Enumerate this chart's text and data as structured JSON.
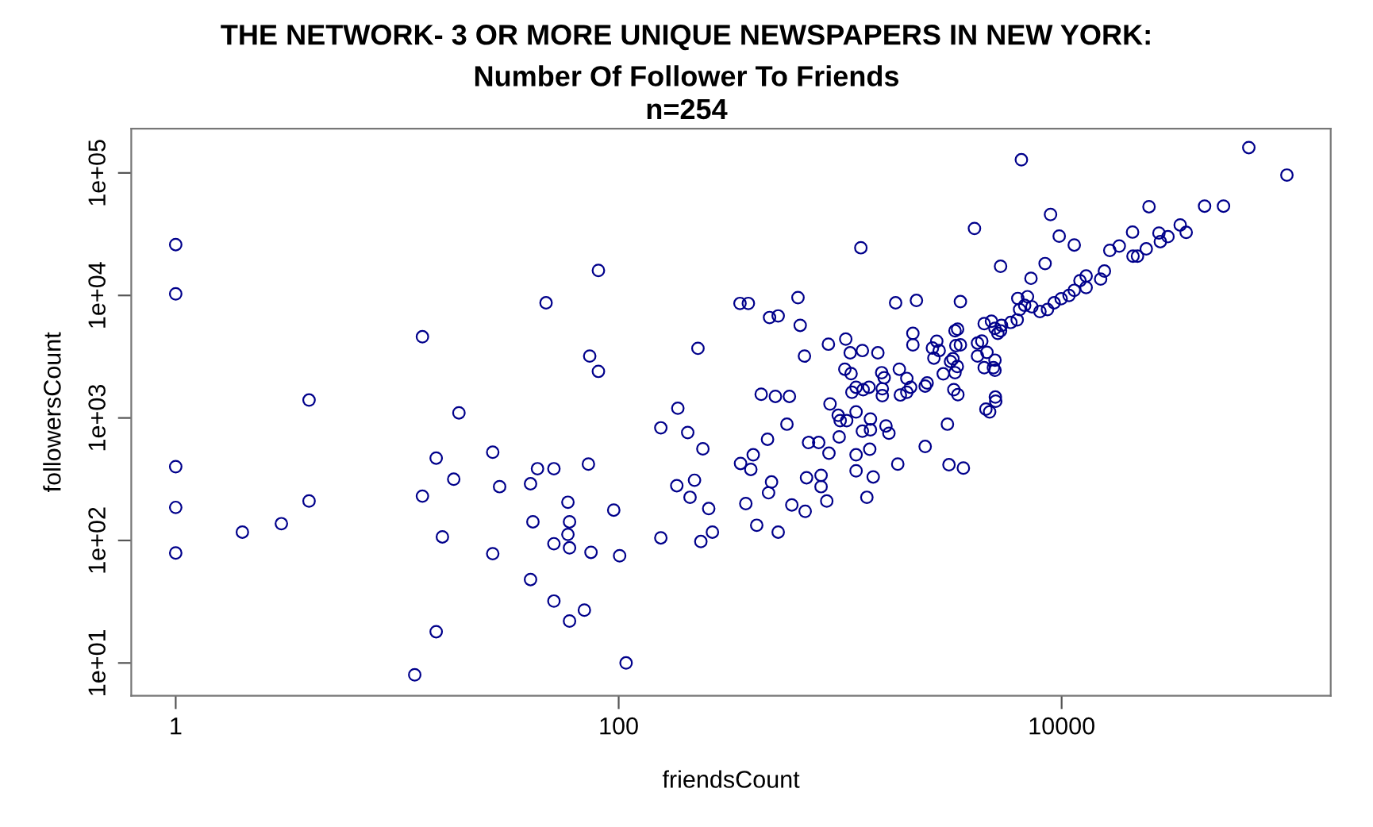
{
  "chart_data": {
    "type": "scatter",
    "title": "THE NETWORK- 3 OR MORE UNIQUE NEWSPAPERS IN NEW YORK:",
    "subtitle": "Number Of Follower To Friends\nn=254",
    "xlabel": "friendsCount",
    "ylabel": "followersCount",
    "log": "xy",
    "marker": "circle",
    "grid": false,
    "legend": false,
    "xlim": [
      0.63,
      164000
    ],
    "ylim": [
      5.4,
      230000
    ],
    "xticks": [
      1,
      100,
      10000
    ],
    "yticks": [
      {
        "value": 10,
        "label": "1e+01"
      },
      {
        "value": 100,
        "label": "1e+02"
      },
      {
        "value": 1000,
        "label": "1e+03"
      },
      {
        "value": 10000,
        "label": "1e+04"
      },
      {
        "value": 100000,
        "label": "1e+05"
      }
    ],
    "series": [
      {
        "color": "#00008b",
        "x": [
          1,
          1,
          1,
          1,
          1,
          2,
          3,
          4,
          4,
          13,
          47,
          19,
          15,
          27,
          43,
          51,
          18,
          29,
          40,
          13,
          59,
          41,
          60,
          59,
          16,
          51,
          60,
          27,
          40,
          51,
          60,
          15,
          12,
          70,
          81,
          74,
          81,
          73,
          95,
          75,
          101,
          108,
          155,
          185,
          205,
          240,
          183,
          220,
          210,
          255,
          155,
          235,
          265,
          228,
          353,
          385,
          480,
          525,
          645,
          660,
          690,
          440,
          510,
          590,
          575,
          470,
          405,
          355,
          395,
          490,
          475,
          375,
          420,
          525,
          605,
          695,
          705,
          820,
          820,
          870,
          720,
          800,
          890,
          885,
          1060,
          1110,
          1260,
          1480,
          1240,
          1780,
          1050,
          1120,
          900,
          980,
          1130,
          1180,
          1350,
          1270,
          1000,
          1070,
          990,
          1180,
          1260,
          1370,
          1370,
          1180,
          1360,
          1180,
          1410,
          1320,
          1540,
          1580,
          1850,
          2000,
          2080,
          1550,
          1550,
          1870,
          2000,
          1610,
          1660,
          1820,
          2130,
          2130,
          2210,
          2420,
          3050,
          3100,
          3600,
          2420,
          2470,
          2920,
          3260,
          3400,
          3300,
          3380,
          3150,
          3230,
          2650,
          2610,
          2730,
          2800,
          3300,
          3390,
          3330,
          3490,
          3490,
          4040,
          5300,
          6580,
          4170,
          4360,
          4170,
          4470,
          4600,
          4550,
          4730,
          5020,
          5040,
          5000,
          4920,
          5000,
          4470,
          4820,
          5000,
          5150,
          5300,
          5350,
          5900,
          6300,
          6340,
          7010,
          6460,
          6810,
          7340,
          7980,
          7270,
          8420,
          8910,
          9750,
          11400,
          8630,
          9250,
          9950,
          10800,
          11400,
          12100,
          12900,
          12900,
          15000,
          15600,
          16500,
          18200,
          20900,
          21000,
          22000,
          24100,
          24800,
          27500,
          27900,
          30200,
          34300,
          36500,
          44200,
          53800,
          70000,
          104000
        ],
        "values": [
          26000,
          10300,
          400,
          186,
          79,
          117,
          137,
          210,
          1400,
          4600,
          8700,
          1100,
          470,
          525,
          385,
          385,
          316,
          275,
          290,
          230,
          205,
          142,
          142,
          112,
          107,
          94,
          87,
          78,
          48,
          32,
          22,
          18,
          8,
          27,
          16000,
          3200,
          2400,
          420,
          177,
          80,
          75,
          10,
          830,
          1200,
          760,
          560,
          280,
          310,
          225,
          182,
          105,
          98,
          117,
          3700,
          8600,
          8600,
          6600,
          6800,
          9600,
          5700,
          3200,
          1560,
          1500,
          1500,
          890,
          670,
          500,
          425,
          380,
          300,
          245,
          200,
          133,
          117,
          195,
          173,
          325,
          340,
          275,
          210,
          630,
          630,
          515,
          4000,
          4400,
          3400,
          3550,
          3400,
          24500,
          8700,
          2500,
          2300,
          1300,
          1050,
          1620,
          1780,
          1780,
          1700,
          950,
          950,
          700,
          1120,
          780,
          980,
          800,
          500,
          555,
          370,
          330,
          225,
          2340,
          2130,
          2500,
          2100,
          1780,
          1730,
          1520,
          1540,
          1620,
          860,
          750,
          420,
          4900,
          3950,
          9100,
          585,
          890,
          415,
          390,
          1820,
          1930,
          2290,
          1700,
          1550,
          2340,
          2630,
          2890,
          3040,
          3080,
          3720,
          4230,
          3550,
          5140,
          5300,
          3890,
          3950,
          8900,
          35200,
          17300,
          128000,
          4090,
          4240,
          3200,
          2570,
          3430,
          1180,
          1120,
          1480,
          1370,
          2960,
          2570,
          2450,
          5890,
          6150,
          5380,
          4900,
          5140,
          5690,
          6030,
          6310,
          9440,
          9760,
          7670,
          8310,
          8070,
          7390,
          13800,
          18200,
          45800,
          30500,
          25800,
          7670,
          8700,
          9400,
          10000,
          11000,
          13200,
          14400,
          11600,
          13600,
          15800,
          23300,
          25300,
          32900,
          20900,
          20900,
          24000,
          53000,
          32300,
          27500,
          30200,
          37600,
          32700,
          53600,
          53600,
          161000,
          96000
        ]
      }
    ]
  }
}
